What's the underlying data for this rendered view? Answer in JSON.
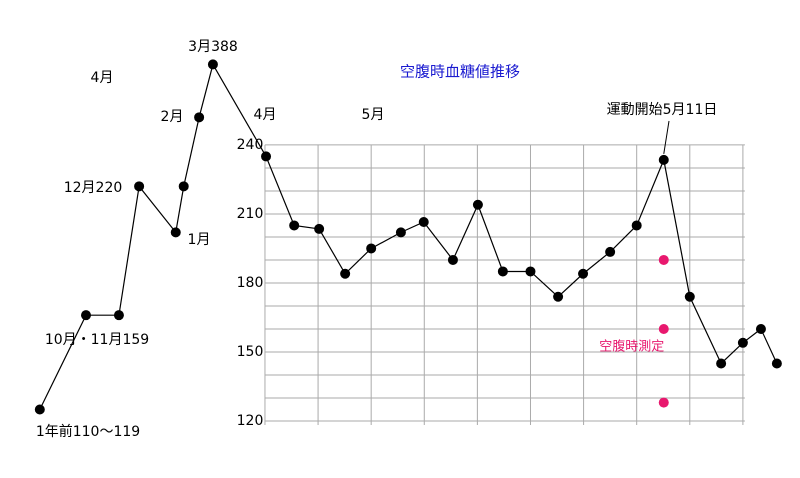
{
  "chart_data": {
    "type": "line",
    "title": "空腹時血糖値推移",
    "title_color": "#1a1ad0",
    "x": [
      -4.24,
      -3.37,
      -2.75,
      -2.37,
      -1.68,
      -1.53,
      -1.24,
      -0.98,
      0.02,
      0.55,
      1.02,
      1.51,
      2.0,
      2.56,
      2.99,
      3.54,
      4.01,
      4.48,
      5.0,
      5.52,
      5.99,
      6.5,
      7.0,
      7.51,
      8.0,
      8.59,
      9.0,
      9.34,
      9.64
    ],
    "series": [
      {
        "color": "#000000",
        "values": [
          125,
          166,
          166,
          222,
          202,
          222,
          252,
          275,
          235,
          205,
          203.5,
          184,
          195,
          202,
          206.5,
          190,
          214,
          185,
          185,
          174,
          184,
          193.5,
          205,
          233.5,
          174,
          145,
          154,
          160,
          145
        ]
      },
      {
        "name": "空腹時測定",
        "color": "#e8186e",
        "x": [
          7.51,
          7.51,
          7.51
        ],
        "values": [
          190,
          160,
          128
        ],
        "markers_only": true
      }
    ],
    "xlim": [
      -4.5,
      10
    ],
    "ylim": [
      120,
      303
    ],
    "yticks": [
      120,
      150,
      180,
      210,
      240
    ],
    "minor_yticks": [
      130,
      140,
      160,
      170,
      190,
      200,
      220,
      230
    ],
    "xticks": [
      0,
      1,
      2,
      3,
      4,
      5,
      6,
      7,
      8,
      9
    ],
    "grid": true,
    "annotations": [
      "1年前110〜119",
      "10月・11月159",
      "12月220",
      "1月",
      "2月",
      "3月388",
      "4月",
      "5月",
      "運動開始5月11日",
      "4月"
    ]
  }
}
